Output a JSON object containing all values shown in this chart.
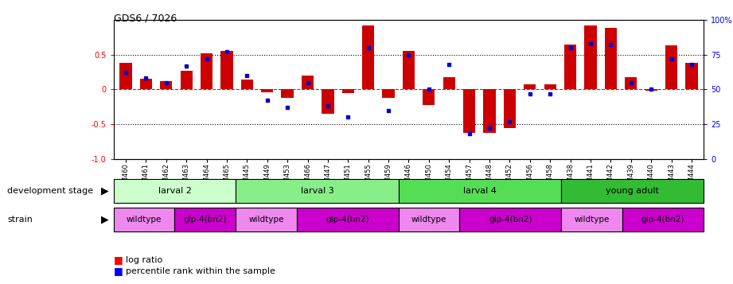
{
  "title": "GDS6 / 7026",
  "samples": [
    "GSM460",
    "GSM461",
    "GSM462",
    "GSM463",
    "GSM464",
    "GSM465",
    "GSM445",
    "GSM449",
    "GSM453",
    "GSM466",
    "GSM447",
    "GSM451",
    "GSM455",
    "GSM459",
    "GSM446",
    "GSM450",
    "GSM454",
    "GSM457",
    "GSM448",
    "GSM452",
    "GSM456",
    "GSM458",
    "GSM438",
    "GSM441",
    "GSM442",
    "GSM439",
    "GSM440",
    "GSM443",
    "GSM444"
  ],
  "log_ratio": [
    0.38,
    0.15,
    0.12,
    0.27,
    0.52,
    0.55,
    0.14,
    -0.04,
    -0.12,
    0.2,
    -0.35,
    -0.05,
    0.92,
    -0.12,
    0.55,
    -0.22,
    0.18,
    -0.62,
    -0.62,
    -0.56,
    0.07,
    0.07,
    0.65,
    0.92,
    0.88,
    0.18,
    -0.02,
    0.63,
    0.38
  ],
  "percentile": [
    62,
    58,
    55,
    67,
    72,
    77,
    60,
    42,
    37,
    55,
    38,
    30,
    80,
    35,
    75,
    50,
    68,
    18,
    22,
    27,
    47,
    47,
    80,
    83,
    82,
    55,
    50,
    72,
    68
  ],
  "dev_stages": [
    {
      "label": "larval 2",
      "start": 0,
      "end": 6,
      "color": "#ccffcc"
    },
    {
      "label": "larval 3",
      "start": 6,
      "end": 14,
      "color": "#88ee88"
    },
    {
      "label": "larval 4",
      "start": 14,
      "end": 22,
      "color": "#55dd55"
    },
    {
      "label": "young adult",
      "start": 22,
      "end": 29,
      "color": "#33bb33"
    }
  ],
  "strains": [
    {
      "label": "wildtype",
      "start": 0,
      "end": 3,
      "color": "#ee88ee"
    },
    {
      "label": "glp-4(bn2)",
      "start": 3,
      "end": 6,
      "color": "#cc00cc"
    },
    {
      "label": "wildtype",
      "start": 6,
      "end": 9,
      "color": "#ee88ee"
    },
    {
      "label": "glp-4(bn2)",
      "start": 9,
      "end": 14,
      "color": "#cc00cc"
    },
    {
      "label": "wildtype",
      "start": 14,
      "end": 17,
      "color": "#ee88ee"
    },
    {
      "label": "glp-4(bn2)",
      "start": 17,
      "end": 22,
      "color": "#cc00cc"
    },
    {
      "label": "wildtype",
      "start": 22,
      "end": 25,
      "color": "#ee88ee"
    },
    {
      "label": "glp-4(bn2)",
      "start": 25,
      "end": 29,
      "color": "#cc00cc"
    }
  ],
  "ylim": [
    -1.0,
    1.0
  ],
  "yticks_left": [
    -1.0,
    -0.5,
    0.0,
    0.5
  ],
  "yticks_right_vals": [
    0,
    25,
    50,
    75,
    100
  ],
  "bar_color": "#cc0000",
  "dot_color": "#0000cc",
  "background_color": "#ffffff"
}
